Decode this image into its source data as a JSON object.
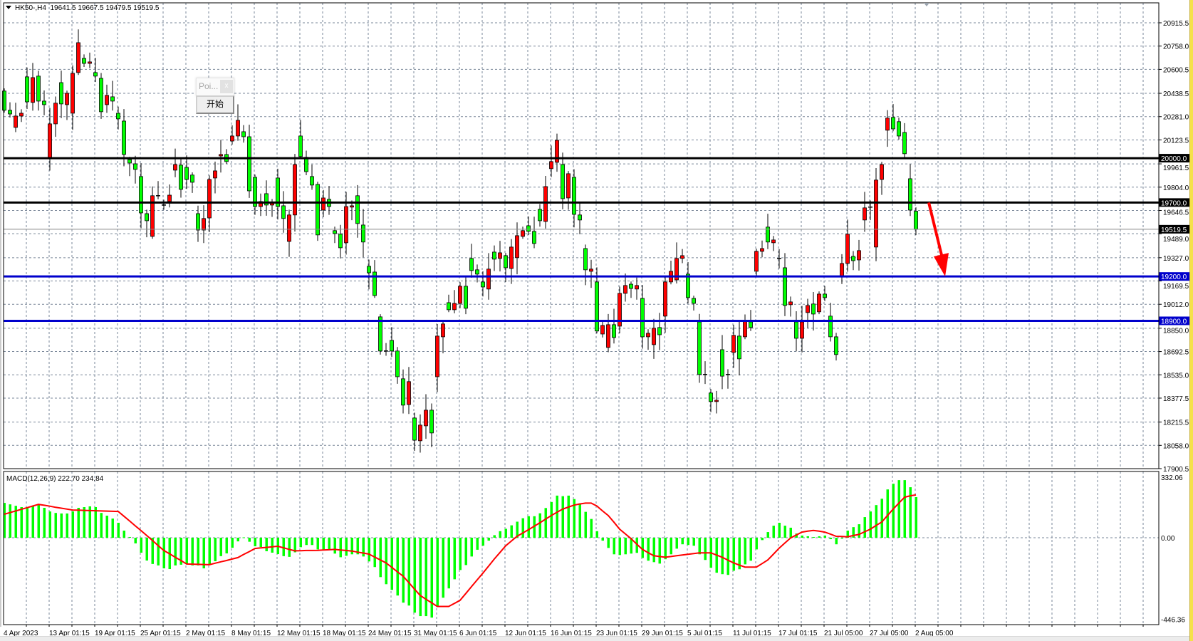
{
  "header": {
    "symbol": "HK50-,H4",
    "open": "19641.5",
    "high": "19667.5",
    "low": "19479.5",
    "close": "19519.5"
  },
  "widget": {
    "title": "Poi...",
    "close_label": "x",
    "start_button": "开始"
  },
  "colors": {
    "up_candle": "#ff0000",
    "down_candle": "#00ff00",
    "macd_histogram": "#00ff00",
    "signal_line": "#ff0000",
    "support_line": "#0000cc",
    "resistance_line": "#000000",
    "arrow": "#ff0000",
    "grid": "#7a8799"
  },
  "chart_data": [
    {
      "type": "candlestick",
      "price_axis": {
        "ticks": [
          "20915.5",
          "20758.0",
          "20600.5",
          "20438.5",
          "20281.0",
          "20123.5",
          "19961.5",
          "19804.0",
          "19646.5",
          "19489.0",
          "19327.0",
          "19169.5",
          "19012.0",
          "18850.0",
          "18692.5",
          "18535.0",
          "18377.5",
          "18215.5",
          "18058.0",
          "17900.5"
        ],
        "range": [
          17900.5,
          20915.5
        ]
      },
      "time_axis": {
        "ticks": [
          "4 Apr 2023",
          "13 Apr 01:15",
          "19 Apr 01:15",
          "25 Apr 01:15",
          "2 May 01:15",
          "8 May 01:15",
          "12 May 01:15",
          "18 May 01:15",
          "24 May 01:15",
          "31 May 01:15",
          "6 Jun 01:15",
          "12 Jun 01:15",
          "16 Jun 01:15",
          "23 Jun 01:15",
          "29 Jun 01:15",
          "5 Jul 01:15",
          "11 Jul 01:15",
          "17 Jul 01:15",
          "21 Jul 05:00",
          "27 Jul 05:00",
          "2 Aug 05:00"
        ]
      },
      "grid": true,
      "horizontal_lines": [
        {
          "price": 20000.0,
          "label": "20000.0",
          "color": "#000000"
        },
        {
          "price": 19700.0,
          "label": "19700.0",
          "color": "#000000"
        },
        {
          "price": 19200.0,
          "label": "19200.0",
          "color": "#0000cc"
        },
        {
          "price": 18900.0,
          "label": "18900.0",
          "color": "#0000cc"
        }
      ],
      "current_price": {
        "price": 19519.5,
        "label": "19519.5"
      },
      "annotation": {
        "type": "arrow-down",
        "from_price": 19700,
        "to_price": 19200
      },
      "candles_open_close": [
        [
          20454,
          20324
        ],
        [
          20324,
          20299
        ],
        [
          20208,
          20285
        ],
        [
          20285,
          20304
        ],
        [
          20550,
          20381
        ],
        [
          20377,
          20545
        ],
        [
          20555,
          20386
        ],
        [
          20386,
          20362
        ],
        [
          19996,
          20232
        ],
        [
          20232,
          20372
        ],
        [
          20511,
          20367
        ],
        [
          20362,
          20439
        ],
        [
          20304,
          20574
        ],
        [
          20579,
          20781
        ],
        [
          20675,
          20641
        ],
        [
          20641,
          20651
        ],
        [
          20579,
          20555
        ],
        [
          20540,
          20314
        ],
        [
          20362,
          20425
        ],
        [
          20415,
          20386
        ],
        [
          20304,
          20266
        ],
        [
          20251,
          20025
        ],
        [
          19991,
          19967
        ],
        [
          19962,
          19924
        ],
        [
          19876,
          19630
        ],
        [
          19625,
          19577
        ],
        [
          19471,
          19746
        ],
        [
          19746,
          19746
        ],
        [
          19683,
          19683
        ],
        [
          19707,
          19750
        ],
        [
          19919,
          19957
        ],
        [
          19953,
          19789
        ],
        [
          19938,
          19856
        ],
        [
          19886,
          19837
        ],
        [
          19625,
          19514
        ],
        [
          19514,
          19592
        ],
        [
          19596,
          19856
        ],
        [
          19866,
          19914
        ],
        [
          20015,
          20025
        ],
        [
          20025,
          19977
        ],
        [
          20116,
          20150
        ],
        [
          20150,
          20256
        ],
        [
          20179,
          20145
        ],
        [
          20145,
          19779
        ],
        [
          19871,
          19673
        ],
        [
          19673,
          19707
        ],
        [
          19760,
          19683
        ],
        [
          19683,
          19697
        ],
        [
          19866,
          19673
        ],
        [
          19678,
          19592
        ],
        [
          19437,
          19616
        ],
        [
          19616,
          19957
        ],
        [
          20150,
          20011
        ],
        [
          20006,
          19909
        ],
        [
          19876,
          19818
        ],
        [
          19823,
          19481
        ],
        [
          19649,
          19731
        ],
        [
          19722,
          19673
        ],
        [
          19510,
          19490
        ],
        [
          19486,
          19394
        ],
        [
          19428,
          19673
        ],
        [
          19669,
          19678
        ],
        [
          19746,
          19558
        ],
        [
          19548,
          19433
        ],
        [
          19269,
          19225
        ],
        [
          19230,
          19071
        ],
        [
          18927,
          18696
        ],
        [
          18696,
          18696
        ],
        [
          18768,
          18696
        ],
        [
          18696,
          18522
        ],
        [
          18508,
          18330
        ],
        [
          18334,
          18489
        ],
        [
          18243,
          18093
        ],
        [
          18089,
          18195
        ],
        [
          18190,
          18296
        ],
        [
          18296,
          18142
        ],
        [
          18522,
          18797
        ],
        [
          18792,
          18879
        ],
        [
          19023,
          18975
        ],
        [
          18975,
          19018
        ],
        [
          19018,
          19134
        ],
        [
          19134,
          18985
        ],
        [
          19322,
          19240
        ],
        [
          19245,
          19216
        ],
        [
          19163,
          19129
        ],
        [
          19115,
          19250
        ],
        [
          19365,
          19317
        ],
        [
          19322,
          19360
        ],
        [
          19341,
          19259
        ],
        [
          19254,
          19399
        ],
        [
          19327,
          19476
        ],
        [
          19471,
          19510
        ],
        [
          19543,
          19505
        ],
        [
          19505,
          19423
        ],
        [
          19654,
          19577
        ],
        [
          19572,
          19808
        ],
        [
          19929,
          19977
        ],
        [
          19972,
          20121
        ],
        [
          19957,
          19726
        ],
        [
          19731,
          19895
        ],
        [
          19871,
          19620
        ],
        [
          19616,
          19582
        ],
        [
          19389,
          19245
        ],
        [
          19235,
          19250
        ],
        [
          19163,
          18831
        ],
        [
          18811,
          18869
        ],
        [
          18720,
          18874
        ],
        [
          18874,
          18787
        ],
        [
          18864,
          19086
        ],
        [
          19086,
          19139
        ],
        [
          19148,
          19119
        ],
        [
          19115,
          19139
        ],
        [
          19052,
          18792
        ],
        [
          18792,
          18816
        ],
        [
          18739,
          18850
        ],
        [
          18855,
          18806
        ],
        [
          18932,
          19163
        ],
        [
          19163,
          19235
        ],
        [
          19177,
          19322
        ],
        [
          19322,
          19341
        ],
        [
          19216,
          19057
        ],
        [
          19052,
          19018
        ],
        [
          18893,
          18537
        ],
        [
          18537,
          18537
        ],
        [
          18412,
          18354
        ],
        [
          18354,
          18363
        ],
        [
          18705,
          18526
        ],
        [
          18537,
          18537
        ],
        [
          18686,
          18802
        ],
        [
          18797,
          18643
        ],
        [
          18792,
          18898
        ],
        [
          18893,
          18855
        ],
        [
          19235,
          19370
        ],
        [
          19370,
          19389
        ],
        [
          19534,
          19433
        ],
        [
          19428,
          19447
        ],
        [
          19322,
          19318
        ],
        [
          19259,
          19004
        ],
        [
          19009,
          19028
        ],
        [
          18893,
          18782
        ],
        [
          18782,
          18893
        ],
        [
          18956,
          19004
        ],
        [
          19014,
          18946
        ],
        [
          18961,
          19081
        ],
        [
          19081,
          19057
        ],
        [
          18932,
          18792
        ],
        [
          18792,
          18672
        ],
        [
          19197,
          19288
        ],
        [
          19288,
          19486
        ],
        [
          19336,
          19307
        ],
        [
          19312,
          19375
        ],
        [
          19582,
          19664
        ],
        [
          19669,
          19669
        ],
        [
          19399,
          19852
        ],
        [
          19856,
          19957
        ],
        [
          20189,
          20271
        ],
        [
          20276,
          20198
        ],
        [
          20247,
          20150
        ],
        [
          20174,
          20030
        ],
        [
          19861,
          19649
        ],
        [
          19641.5,
          19519.5
        ]
      ]
    },
    {
      "type": "bar",
      "label": "MACD(12,26,9) 222.70 234.84",
      "indicator": "MACD(12,26,9)",
      "main_value": "222.70",
      "signal_value": "234.84",
      "axis_ticks": [
        "332.06",
        "0.00",
        "-446.36"
      ],
      "range": [
        -446.36,
        332.06
      ],
      "histogram": [
        191,
        183,
        175,
        168,
        168,
        175,
        179,
        164,
        144,
        136,
        133,
        133,
        144,
        164,
        168,
        172,
        168,
        136,
        121,
        105,
        82,
        39,
        4,
        -31,
        -82,
        -125,
        -144,
        -152,
        -168,
        -172,
        -152,
        -148,
        -144,
        -152,
        -152,
        -168,
        -148,
        -129,
        -101,
        -86,
        -55,
        -20,
        2,
        -22,
        -47,
        -51,
        -74,
        -82,
        -90,
        -101,
        -105,
        -80,
        -52,
        -40,
        -40,
        -64,
        -64,
        -64,
        -87,
        -107,
        -99,
        -91,
        -91,
        -103,
        -130,
        -161,
        -216,
        -255,
        -286,
        -317,
        -356,
        -372,
        -411,
        -430,
        -430,
        -438,
        -380,
        -329,
        -278,
        -228,
        -177,
        -150,
        -103,
        -66,
        -44,
        -16,
        14,
        36,
        49,
        68,
        88,
        107,
        118,
        118,
        134,
        163,
        196,
        231,
        228,
        231,
        212,
        189,
        142,
        103,
        36,
        -16,
        -56,
        -91,
        -95,
        -91,
        -87,
        -83,
        -111,
        -126,
        -134,
        -142,
        -118,
        -91,
        -60,
        -36,
        -40,
        -44,
        -91,
        -122,
        -165,
        -192,
        -200,
        -204,
        -181,
        -173,
        -146,
        -126,
        -64,
        -13,
        31,
        66,
        82,
        66,
        55,
        23,
        12,
        8,
        4,
        8,
        12,
        -8,
        -36,
        -5,
        39,
        58,
        74,
        113,
        144,
        179,
        214,
        265,
        296,
        316,
        316,
        277,
        222.7
      ],
      "signal": [
        129,
        138,
        147,
        156,
        165,
        174,
        183,
        178,
        173,
        167,
        162,
        157,
        152,
        151,
        150,
        149,
        148,
        147,
        146,
        145,
        144,
        118,
        92,
        65,
        39,
        12,
        -15,
        -43,
        -70,
        -88,
        -107,
        -125,
        -144,
        -145,
        -146,
        -147,
        -148,
        -140,
        -132,
        -125,
        -117,
        -109,
        -92,
        -76,
        -59,
        -56,
        -53,
        -50,
        -47,
        -55,
        -64,
        -72,
        -71,
        -70,
        -70,
        -69,
        -67,
        -66,
        -64,
        -67,
        -70,
        -73,
        -79,
        -84,
        -90,
        -106,
        -122,
        -138,
        -162,
        -187,
        -211,
        -246,
        -282,
        -317,
        -337,
        -357,
        -377,
        -377,
        -377,
        -360,
        -343,
        -306,
        -268,
        -231,
        -194,
        -156,
        -117,
        -81,
        -44,
        -18,
        8,
        26,
        44,
        63,
        82,
        102,
        122,
        140,
        157,
        168,
        179,
        185,
        190,
        190,
        174,
        147,
        122,
        85,
        47,
        21,
        -5,
        -35,
        -64,
        -82,
        -99,
        -103,
        -107,
        -103,
        -99,
        -95,
        -91,
        -87,
        -83,
        -83,
        -83,
        -95,
        -107,
        -123,
        -138,
        -150,
        -161,
        -161,
        -161,
        -142,
        -122,
        -90,
        -57,
        -29,
        -1,
        15,
        31,
        36,
        40,
        36,
        31,
        20,
        8,
        7,
        5,
        12,
        18,
        33,
        47,
        67,
        86,
        122,
        157,
        190,
        222,
        230,
        234.84
      ]
    }
  ]
}
